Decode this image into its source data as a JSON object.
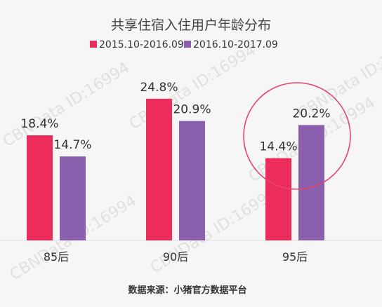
{
  "chart_data": {
    "type": "bar",
    "title": "共享住宿入住用户年龄分布",
    "categories": [
      "85后",
      "90后",
      "95后"
    ],
    "series": [
      {
        "name": "2015.10-2016.09",
        "values": [
          18.4,
          24.8,
          14.4
        ],
        "labels": [
          "18.4%",
          "24.8%",
          "14.4%"
        ],
        "color": "#ec2d5b"
      },
      {
        "name": "2016.10-2017.09",
        "values": [
          14.7,
          20.9,
          20.2
        ],
        "labels": [
          "14.7%",
          "20.9%",
          "20.2%"
        ],
        "color": "#8a5fad"
      }
    ],
    "ylim": [
      0,
      30
    ],
    "grid": false,
    "legend_position": "top-center",
    "highlight": {
      "category": "95后",
      "shape": "circle",
      "color": "#e8456b"
    },
    "source": "数据来源：小猪官方数据平台",
    "watermark": "CBNData ID:16994"
  }
}
